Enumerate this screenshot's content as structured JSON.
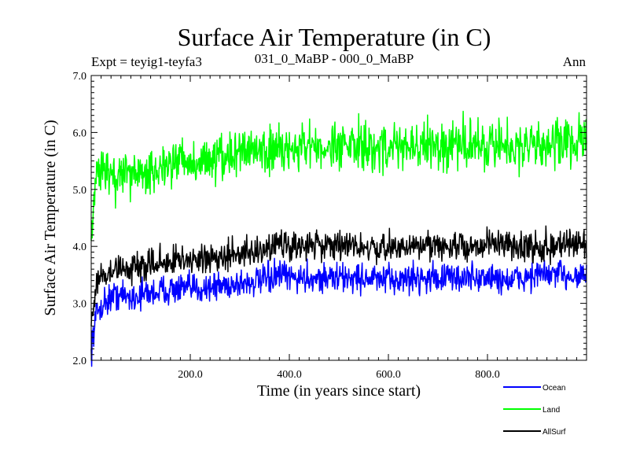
{
  "chart_data": {
    "type": "line",
    "title": "Surface Air Temperature (in C)",
    "subtitle_left": "Expt = teyig1-teyfa3",
    "subtitle_center": "031_0_MaBP - 000_0_MaBP",
    "subtitle_right": "Ann",
    "xlabel": "Time (in years since start)",
    "ylabel": "Surface Air Temperature (in C)",
    "xlim": [
      0,
      1000
    ],
    "ylim": [
      2.0,
      7.0
    ],
    "x_ticks": [
      200,
      400,
      600,
      800
    ],
    "x_tick_labels": [
      "200.0",
      "400.0",
      "600.0",
      "800.0"
    ],
    "y_ticks": [
      2.0,
      3.0,
      4.0,
      5.0,
      6.0,
      7.0
    ],
    "y_tick_labels": [
      "2.0",
      "3.0",
      "4.0",
      "5.0",
      "6.0",
      "7.0"
    ],
    "legend_position": "bottom-right",
    "series": [
      {
        "name": "Ocean",
        "color": "#0000ff",
        "x": [
          0,
          10,
          20,
          30,
          40,
          50,
          60,
          80,
          100,
          130,
          160,
          200,
          250,
          300,
          350,
          380,
          400,
          450,
          500,
          550,
          600,
          650,
          700,
          750,
          800,
          850,
          900,
          950,
          1000
        ],
        "values": [
          2.2,
          2.8,
          2.95,
          3.05,
          3.1,
          3.15,
          3.15,
          3.1,
          3.15,
          3.2,
          3.25,
          3.25,
          3.3,
          3.35,
          3.4,
          3.5,
          3.45,
          3.45,
          3.45,
          3.45,
          3.4,
          3.45,
          3.45,
          3.45,
          3.45,
          3.4,
          3.5,
          3.5,
          3.5
        ]
      },
      {
        "name": "Land",
        "color": "#00ff00",
        "x": [
          0,
          10,
          20,
          30,
          40,
          50,
          60,
          80,
          100,
          130,
          160,
          200,
          250,
          300,
          350,
          380,
          400,
          450,
          500,
          550,
          600,
          650,
          700,
          750,
          800,
          850,
          900,
          950,
          1000
        ],
        "values": [
          4.1,
          5.2,
          5.4,
          5.3,
          5.2,
          5.1,
          5.2,
          5.3,
          5.3,
          5.35,
          5.45,
          5.45,
          5.55,
          5.6,
          5.65,
          5.75,
          5.7,
          5.75,
          5.75,
          5.75,
          5.75,
          5.75,
          5.8,
          5.8,
          5.8,
          5.75,
          5.8,
          5.8,
          5.85
        ]
      },
      {
        "name": "AllSurf",
        "color": "#000000",
        "x": [
          0,
          10,
          20,
          30,
          40,
          50,
          60,
          80,
          100,
          130,
          160,
          200,
          250,
          300,
          350,
          380,
          400,
          450,
          500,
          550,
          600,
          650,
          700,
          750,
          800,
          850,
          900,
          950,
          1000
        ],
        "values": [
          2.6,
          3.3,
          3.45,
          3.5,
          3.5,
          3.6,
          3.6,
          3.65,
          3.65,
          3.7,
          3.75,
          3.75,
          3.85,
          3.9,
          3.95,
          4.05,
          4.0,
          4.0,
          4.0,
          4.0,
          3.95,
          4.0,
          4.0,
          4.0,
          4.05,
          4.0,
          4.0,
          4.05,
          4.05
        ]
      }
    ]
  }
}
